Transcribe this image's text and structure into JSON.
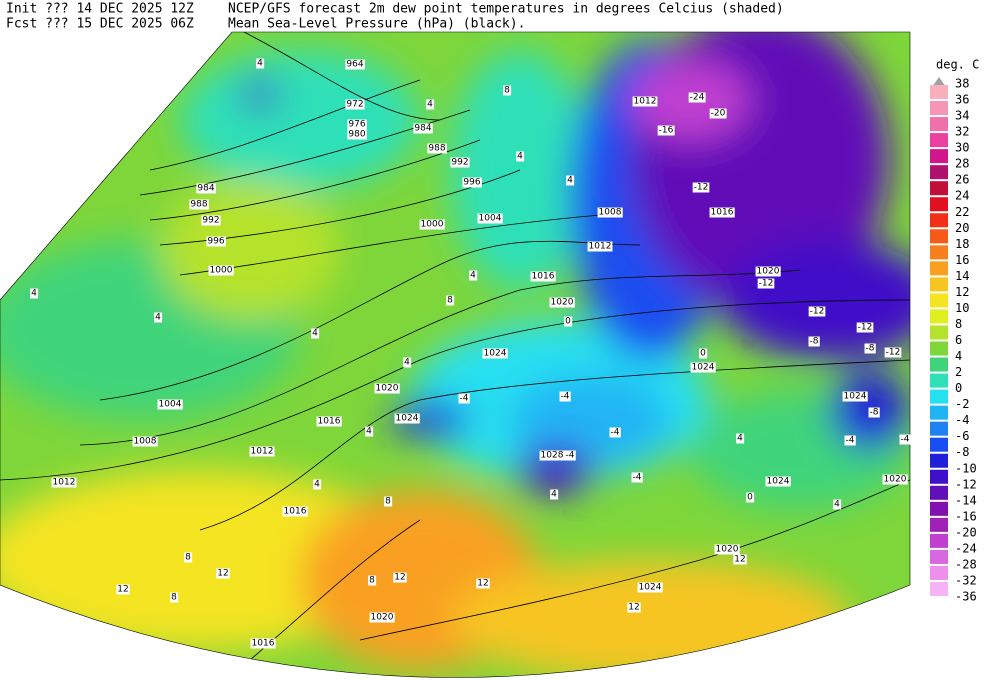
{
  "header": {
    "init": "Init  ??? 14 DEC 2025 12Z",
    "fcst": "Fcst ??? 15 DEC 2025 06Z",
    "title": "NCEP/GFS forecast 2m dew point temperatures in degrees Celcius (shaded)",
    "subtitle": "Mean Sea-Level Pressure (hPa) (black)."
  },
  "legend": {
    "unit": "deg. C",
    "levels": [
      38,
      36,
      34,
      32,
      30,
      28,
      26,
      24,
      22,
      20,
      18,
      16,
      14,
      12,
      10,
      8,
      6,
      4,
      2,
      0,
      -2,
      -4,
      -6,
      -8,
      -10,
      -12,
      -14,
      -16,
      -20,
      -24,
      -28,
      -32,
      -36
    ],
    "colors": [
      "#a0a0a0",
      "#f9b0bc",
      "#f596b6",
      "#f070aa",
      "#ea40a0",
      "#d0168a",
      "#b0106e",
      "#c0103a",
      "#e01020",
      "#f03018",
      "#f55a18",
      "#f77f1e",
      "#f9a020",
      "#f7c520",
      "#f5e420",
      "#e0ef20",
      "#b5e22c",
      "#7ed63a",
      "#40d47a",
      "#2ee0b8",
      "#25e0f0",
      "#20b4f5",
      "#1f82f0",
      "#1a4ef0",
      "#2020d8",
      "#4010c8",
      "#6010b8",
      "#8010b0",
      "#a020b8",
      "#c040d0",
      "#d868e0",
      "#ec90ec",
      "#f6b4f6"
    ]
  },
  "isobar_labels": [
    964,
    972,
    976,
    980,
    984,
    988,
    992,
    996,
    984,
    988,
    992,
    996,
    1000,
    1000,
    1004,
    1008,
    1012,
    1016,
    1020,
    1024,
    1020,
    1016,
    1024,
    1004,
    1008,
    1012,
    1012,
    1016,
    1028,
    1024,
    1024,
    1020,
    1024,
    1020,
    1024,
    1020,
    1016,
    1012,
    1016,
    1020
  ],
  "dewpoint_labels": [
    -24,
    -20,
    -16,
    -12,
    -12,
    -12,
    -12,
    -8,
    -8,
    -12,
    -8,
    -4,
    -4,
    -4,
    -4,
    -4,
    -4,
    -4,
    0,
    0,
    0,
    4,
    4,
    4,
    4,
    4,
    4,
    4,
    4,
    4,
    4,
    4,
    4,
    4,
    8,
    8,
    8,
    8,
    12,
    12,
    12,
    12,
    12,
    12,
    8,
    4,
    8
  ]
}
